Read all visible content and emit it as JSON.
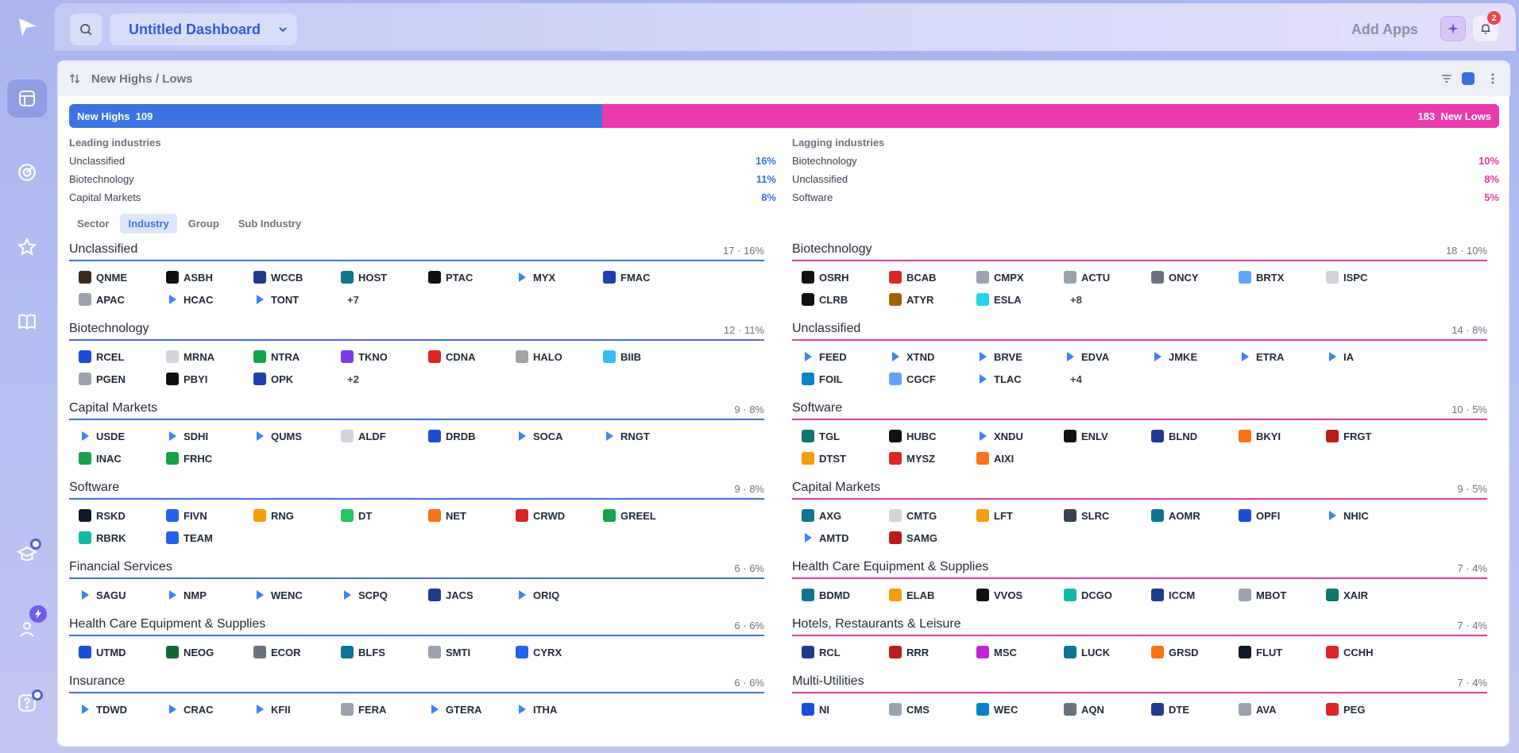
{
  "topbar": {
    "dashboard_title": "Untitled Dashboard",
    "add_apps_label": "Add Apps",
    "notification_count": "2"
  },
  "panel": {
    "title": "New Highs / Lows"
  },
  "highs_lows": {
    "highs_label": "New Highs",
    "highs_count": "109",
    "lows_count": "183",
    "lows_label": "New Lows",
    "highs_fraction": 0.373
  },
  "leading": {
    "label": "Leading industries",
    "rows": [
      {
        "name": "Unclassified",
        "pct": "16%"
      },
      {
        "name": "Biotechnology",
        "pct": "11%"
      },
      {
        "name": "Capital Markets",
        "pct": "8%"
      }
    ]
  },
  "lagging": {
    "label": "Lagging industries",
    "rows": [
      {
        "name": "Biotechnology",
        "pct": "10%"
      },
      {
        "name": "Unclassified",
        "pct": "8%"
      },
      {
        "name": "Software",
        "pct": "5%"
      }
    ]
  },
  "tabs": [
    {
      "label": "Sector",
      "active": false
    },
    {
      "label": "Industry",
      "active": true
    },
    {
      "label": "Group",
      "active": false
    },
    {
      "label": "Sub Industry",
      "active": false
    }
  ],
  "highs_groups": [
    {
      "name": "Unclassified",
      "count": "17 · 16%",
      "more": "+7",
      "tickers": [
        {
          "t": "QNME",
          "c": "#3d2b1f"
        },
        {
          "t": "ASBH",
          "c": "#111"
        },
        {
          "t": "WCCB",
          "c": "#1e3a8a"
        },
        {
          "t": "HOST",
          "c": "#0e7490"
        },
        {
          "t": "PTAC",
          "c": "#111"
        },
        {
          "t": "MYX",
          "c": "arrow"
        },
        {
          "t": "FMAC",
          "c": "#1e40af"
        },
        {
          "t": "APAC",
          "c": "#9ca3af"
        },
        {
          "t": "HCAC",
          "c": "arrow"
        },
        {
          "t": "TONT",
          "c": "arrow"
        }
      ]
    },
    {
      "name": "Biotechnology",
      "count": "12 · 11%",
      "more": "+2",
      "tickers": [
        {
          "t": "RCEL",
          "c": "#1d4ed8"
        },
        {
          "t": "MRNA",
          "c": "#d1d5db"
        },
        {
          "t": "NTRA",
          "c": "#16a34a"
        },
        {
          "t": "TKNO",
          "c": "#7c3aed"
        },
        {
          "t": "CDNA",
          "c": "#dc2626"
        },
        {
          "t": "HALO",
          "c": "#a3a3a3"
        },
        {
          "t": "BIIB",
          "c": "#38bdf8"
        },
        {
          "t": "PGEN",
          "c": "#9ca3af"
        },
        {
          "t": "PBYI",
          "c": "#111"
        },
        {
          "t": "OPK",
          "c": "#1e40af"
        }
      ]
    },
    {
      "name": "Capital Markets",
      "count": "9 · 8%",
      "more": "",
      "tickers": [
        {
          "t": "USDE",
          "c": "arrow"
        },
        {
          "t": "SDHI",
          "c": "arrow"
        },
        {
          "t": "QUMS",
          "c": "arrow"
        },
        {
          "t": "ALDF",
          "c": "#d1d5db"
        },
        {
          "t": "DRDB",
          "c": "#1d4ed8"
        },
        {
          "t": "SOCA",
          "c": "arrow"
        },
        {
          "t": "RNGT",
          "c": "arrow"
        },
        {
          "t": "INAC",
          "c": "#16a34a"
        },
        {
          "t": "FRHC",
          "c": "#16a34a"
        }
      ]
    },
    {
      "name": "Software",
      "count": "9 · 8%",
      "more": "",
      "tickers": [
        {
          "t": "RSKD",
          "c": "#111827"
        },
        {
          "t": "FIVN",
          "c": "#2563eb"
        },
        {
          "t": "RNG",
          "c": "#f59e0b"
        },
        {
          "t": "DT",
          "c": "#22c55e"
        },
        {
          "t": "NET",
          "c": "#f97316"
        },
        {
          "t": "CRWD",
          "c": "#dc2626"
        },
        {
          "t": "GREEL",
          "c": "#16a34a"
        },
        {
          "t": "RBRK",
          "c": "#14b8a6"
        },
        {
          "t": "TEAM",
          "c": "#2563eb"
        }
      ]
    },
    {
      "name": "Financial Services",
      "count": "6 · 6%",
      "more": "",
      "tickers": [
        {
          "t": "SAGU",
          "c": "arrow"
        },
        {
          "t": "NMP",
          "c": "arrow"
        },
        {
          "t": "WENC",
          "c": "arrow"
        },
        {
          "t": "SCPQ",
          "c": "arrow"
        },
        {
          "t": "JACS",
          "c": "#1e3a8a"
        },
        {
          "t": "ORIQ",
          "c": "arrow"
        }
      ]
    },
    {
      "name": "Health Care Equipment & Supplies",
      "count": "6 · 6%",
      "more": "",
      "tickers": [
        {
          "t": "UTMD",
          "c": "#1d4ed8"
        },
        {
          "t": "NEOG",
          "c": "#166534"
        },
        {
          "t": "ECOR",
          "c": "#6b7280"
        },
        {
          "t": "BLFS",
          "c": "#0e7490"
        },
        {
          "t": "SMTI",
          "c": "#9ca3af"
        },
        {
          "t": "CYRX",
          "c": "#2563eb"
        }
      ]
    },
    {
      "name": "Insurance",
      "count": "6 · 6%",
      "more": "",
      "tickers": [
        {
          "t": "TDWD",
          "c": "arrow"
        },
        {
          "t": "CRAC",
          "c": "arrow"
        },
        {
          "t": "KFII",
          "c": "arrow"
        },
        {
          "t": "FERA",
          "c": "#9ca3af"
        },
        {
          "t": "GTERA",
          "c": "arrow"
        },
        {
          "t": "ITHA",
          "c": "arrow"
        }
      ]
    }
  ],
  "lows_groups": [
    {
      "name": "Biotechnology",
      "count": "18 · 10%",
      "more": "+8",
      "tickers": [
        {
          "t": "OSRH",
          "c": "#111"
        },
        {
          "t": "BCAB",
          "c": "#dc2626"
        },
        {
          "t": "CMPX",
          "c": "#9ca3af"
        },
        {
          "t": "ACTU",
          "c": "#9ca3af"
        },
        {
          "t": "ONCY",
          "c": "#6b7280"
        },
        {
          "t": "BRTX",
          "c": "#60a5fa"
        },
        {
          "t": "ISPC",
          "c": "#d1d5db"
        },
        {
          "t": "CLRB",
          "c": "#111"
        },
        {
          "t": "ATYR",
          "c": "#a16207"
        },
        {
          "t": "ESLA",
          "c": "#22d3ee"
        }
      ]
    },
    {
      "name": "Unclassified",
      "count": "14 · 8%",
      "more": "+4",
      "tickers": [
        {
          "t": "FEED",
          "c": "arrow"
        },
        {
          "t": "XTND",
          "c": "arrow"
        },
        {
          "t": "BRVE",
          "c": "arrow"
        },
        {
          "t": "EDVA",
          "c": "arrow"
        },
        {
          "t": "JMKE",
          "c": "arrow"
        },
        {
          "t": "ETRA",
          "c": "arrow"
        },
        {
          "t": "IA",
          "c": "arrow"
        },
        {
          "t": "FOIL",
          "c": "#0284c7"
        },
        {
          "t": "CGCF",
          "c": "#60a5fa"
        },
        {
          "t": "TLAC",
          "c": "arrow"
        }
      ]
    },
    {
      "name": "Software",
      "count": "10 · 5%",
      "more": "",
      "tickers": [
        {
          "t": "TGL",
          "c": "#0f766e"
        },
        {
          "t": "HUBC",
          "c": "#111"
        },
        {
          "t": "XNDU",
          "c": "arrow"
        },
        {
          "t": "ENLV",
          "c": "#111"
        },
        {
          "t": "BLND",
          "c": "#1e3a8a"
        },
        {
          "t": "BKYI",
          "c": "#f97316"
        },
        {
          "t": "FRGT",
          "c": "#b91c1c"
        },
        {
          "t": "DTST",
          "c": "#f59e0b"
        },
        {
          "t": "MYSZ",
          "c": "#dc2626"
        },
        {
          "t": "AIXI",
          "c": "#f97316"
        }
      ]
    },
    {
      "name": "Capital Markets",
      "count": "9 · 5%",
      "more": "",
      "tickers": [
        {
          "t": "AXG",
          "c": "#0e7490"
        },
        {
          "t": "CMTG",
          "c": "#d1d5db"
        },
        {
          "t": "LFT",
          "c": "#f59e0b"
        },
        {
          "t": "SLRC",
          "c": "#374151"
        },
        {
          "t": "AOMR",
          "c": "#0e7490"
        },
        {
          "t": "OPFI",
          "c": "#1d4ed8"
        },
        {
          "t": "NHIC",
          "c": "arrow"
        },
        {
          "t": "AMTD",
          "c": "arrow"
        },
        {
          "t": "SAMG",
          "c": "#b91c1c"
        }
      ]
    },
    {
      "name": "Health Care Equipment & Supplies",
      "count": "7 · 4%",
      "more": "",
      "tickers": [
        {
          "t": "BDMD",
          "c": "#0e7490"
        },
        {
          "t": "ELAB",
          "c": "#f59e0b"
        },
        {
          "t": "VVOS",
          "c": "#111"
        },
        {
          "t": "DCGO",
          "c": "#14b8a6"
        },
        {
          "t": "ICCM",
          "c": "#1e3a8a"
        },
        {
          "t": "MBOT",
          "c": "#9ca3af"
        },
        {
          "t": "XAIR",
          "c": "#0f766e"
        }
      ]
    },
    {
      "name": "Hotels, Restaurants & Leisure",
      "count": "7 · 4%",
      "more": "",
      "tickers": [
        {
          "t": "RCL",
          "c": "#1e3a8a"
        },
        {
          "t": "RRR",
          "c": "#b91c1c"
        },
        {
          "t": "MSC",
          "c": "#c026d3"
        },
        {
          "t": "LUCK",
          "c": "#0e7490"
        },
        {
          "t": "GRSD",
          "c": "#f97316"
        },
        {
          "t": "FLUT",
          "c": "#111827"
        },
        {
          "t": "CCHH",
          "c": "#dc2626"
        }
      ]
    },
    {
      "name": "Multi-Utilities",
      "count": "7 · 4%",
      "more": "",
      "tickers": [
        {
          "t": "NI",
          "c": "#1d4ed8"
        },
        {
          "t": "CMS",
          "c": "#9ca3af"
        },
        {
          "t": "WEC",
          "c": "#0284c7"
        },
        {
          "t": "AQN",
          "c": "#6b7280"
        },
        {
          "t": "DTE",
          "c": "#1e3a8a"
        },
        {
          "t": "AVA",
          "c": "#9ca3af"
        },
        {
          "t": "PEG",
          "c": "#dc2626"
        }
      ]
    }
  ]
}
